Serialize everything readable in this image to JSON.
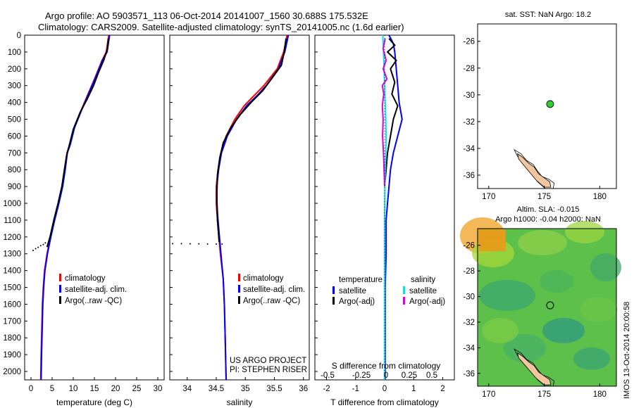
{
  "header": {
    "title_line1": "Argo profile: AO 5903571_113 06-Oct-2014 20141007_1560 30.688S 175.532E",
    "title_line2": "Climatology: CARS2009. Satellite-adjusted climatology: synTS_20141005.nc (1.6d earlier)"
  },
  "colors": {
    "climatology": "#ff0000",
    "satellite": "#0000ff",
    "argo": "#000000",
    "sat_salinity": "#00e6e6",
    "argo_salinity_adj": "#e000e0",
    "argo_marker": "#33cc33",
    "land": "#f3c6a0"
  },
  "chart_data": [
    {
      "type": "line",
      "panel": "temperature",
      "xlabel": "temperature (deg C)",
      "ylabel": "",
      "xlim": [
        -1.5,
        31.5
      ],
      "ylim": [
        2050,
        0
      ],
      "xticks": [
        "0",
        "5",
        "10",
        "15",
        "20",
        "25",
        "30"
      ],
      "xtick_values": [
        0,
        5,
        10,
        15,
        20,
        25,
        30
      ],
      "yticks": [
        "0",
        "100",
        "200",
        "300",
        "400",
        "500",
        "600",
        "700",
        "800",
        "900",
        "1000",
        "1100",
        "1200",
        "1300",
        "1400",
        "1500",
        "1600",
        "1700",
        "1800",
        "1900",
        "2000"
      ],
      "ytick_values": [
        0,
        100,
        200,
        300,
        400,
        500,
        600,
        700,
        800,
        900,
        1000,
        1100,
        1200,
        1300,
        1400,
        1500,
        1600,
        1700,
        1800,
        1900,
        2000
      ],
      "legend": [
        "climatology",
        "satellite-adj. clim.",
        "Argo(..raw -QC)"
      ],
      "legend_position": "bottom-right",
      "series": [
        {
          "name": "climatology",
          "color": "#ff0000",
          "x": [
            18.4,
            17.8,
            16.8,
            15.2,
            13.5,
            11.8,
            10.2,
            9.2,
            8.5,
            8.0,
            7.4,
            6.5,
            5.5,
            4.6,
            3.8,
            3.2,
            2.9,
            2.7,
            2.6,
            2.5,
            2.4,
            2.3
          ],
          "y": [
            0,
            100,
            150,
            250,
            350,
            450,
            550,
            650,
            700,
            800,
            900,
            1000,
            1100,
            1200,
            1300,
            1400,
            1500,
            1600,
            1700,
            1800,
            1900,
            2050
          ]
        },
        {
          "name": "satellite-adj. clim.",
          "color": "#0000ff",
          "x": [
            18.6,
            18.0,
            16.9,
            15.3,
            13.6,
            11.9,
            10.3,
            9.3,
            8.6,
            8.1,
            7.5,
            6.6,
            5.6,
            4.7,
            3.9,
            3.3,
            3.0,
            2.8,
            2.7,
            2.6,
            2.5,
            2.4
          ],
          "y": [
            0,
            100,
            150,
            250,
            350,
            450,
            550,
            650,
            700,
            800,
            900,
            1000,
            1100,
            1200,
            1300,
            1400,
            1500,
            1600,
            1700,
            1800,
            1900,
            2050
          ]
        },
        {
          "name": "Argo(..raw -QC)",
          "color": "#000000",
          "x": [
            18.3,
            18.1,
            17.2,
            16.0,
            14.8,
            13.3,
            11.6,
            10.0,
            9.1,
            8.4,
            7.9,
            7.3,
            6.4,
            5.4,
            4.5,
            3.8
          ],
          "y": [
            20,
            80,
            150,
            220,
            300,
            380,
            460,
            560,
            650,
            720,
            800,
            900,
            1000,
            1100,
            1200,
            1260
          ]
        },
        {
          "name": "",
          "color": "#000000",
          "style": "dots",
          "x": [
            0.5,
            1.1,
            1.7,
            2.3,
            2.9,
            3.4
          ],
          "y": [
            1280,
            1270,
            1262,
            1252,
            1245,
            1235
          ]
        }
      ]
    },
    {
      "type": "line",
      "panel": "salinity",
      "xlabel": "salinity",
      "ylabel": "",
      "xlim": [
        33.7,
        36.1
      ],
      "ylim": [
        2050,
        0
      ],
      "xticks": [
        "34",
        "34.5",
        "35",
        "35.5",
        "36"
      ],
      "xtick_values": [
        34,
        34.5,
        35,
        35.5,
        36
      ],
      "legend": [
        "climatology",
        "satellite-adj. clim.",
        "Argo(..raw -QC)"
      ],
      "legend_position": "bottom-right",
      "annotations": [
        "US ARGO PROJECT",
        "PI: STEPHEN RISER"
      ],
      "series": [
        {
          "name": "climatology",
          "color": "#ff0000",
          "x": [
            35.72,
            35.66,
            35.55,
            35.32,
            35.15,
            34.98,
            34.82,
            34.67,
            34.58,
            34.53,
            34.5,
            34.5,
            34.52,
            34.57,
            34.62,
            34.64,
            34.65,
            34.66,
            34.67
          ],
          "y": [
            0,
            100,
            200,
            300,
            360,
            420,
            500,
            600,
            700,
            800,
            900,
            1000,
            1100,
            1300,
            1450,
            1600,
            1750,
            1900,
            2050
          ]
        },
        {
          "name": "satellite-adj. clim.",
          "color": "#0000ff",
          "x": [
            35.74,
            35.68,
            35.57,
            35.36,
            35.2,
            35.02,
            34.85,
            34.69,
            34.59,
            34.54,
            34.51,
            34.51,
            34.53,
            34.58,
            34.62,
            34.64,
            34.65,
            34.66,
            34.67
          ],
          "y": [
            0,
            100,
            200,
            300,
            360,
            420,
            500,
            600,
            700,
            800,
            900,
            1000,
            1100,
            1300,
            1450,
            1600,
            1750,
            1900,
            2050
          ]
        },
        {
          "name": "Argo(..raw -QC)",
          "color": "#000000",
          "x": [
            35.7,
            35.67,
            35.62,
            35.45,
            35.3,
            35.1,
            34.92,
            34.75,
            34.62,
            34.56,
            34.52,
            34.51,
            34.52,
            34.55
          ],
          "y": [
            20,
            100,
            180,
            260,
            330,
            400,
            470,
            550,
            640,
            730,
            830,
            950,
            1100,
            1230
          ]
        },
        {
          "name": "",
          "color": "#000000",
          "style": "dots",
          "x": [
            33.75,
            33.9,
            34.05,
            34.2,
            34.35,
            34.5,
            34.6
          ],
          "y": [
            1240,
            1240,
            1241,
            1241,
            1242,
            1242,
            1242
          ]
        }
      ]
    },
    {
      "type": "line",
      "panel": "difference",
      "xlabel": "T difference from climatology",
      "xlabel2": "S difference from climatology",
      "ylabel": "",
      "xlim": [
        -2.4,
        2.4
      ],
      "ylim": [
        2050,
        0
      ],
      "xticks": [
        "-2",
        "-1",
        "0",
        "1",
        "2"
      ],
      "xtick_values": [
        -2,
        -1,
        0,
        1,
        2
      ],
      "xticks2": [
        "-0.5",
        "-0.25",
        "0",
        "0.25",
        "0.5"
      ],
      "xtick2_values": [
        -0.5,
        -0.25,
        0,
        0.25,
        0.5
      ],
      "legend_group1_title": "temperature",
      "legend_group2_title": "salinity",
      "legend": [
        "satellite",
        "Argo(-adj)",
        "satellite",
        "Argo(-adj)"
      ],
      "legend_position": "middle",
      "series": [
        {
          "name": "satellite",
          "group": "temperature",
          "color": "#0000ff",
          "x": [
            0.15,
            0.3,
            0.35,
            0.4,
            0.45,
            0.5,
            0.55,
            0.6,
            0.45,
            0.3,
            0.2,
            0.15,
            0.1,
            0.05,
            0.05,
            0.02,
            0.02,
            0.02,
            0.02
          ],
          "y": [
            0,
            50,
            100,
            200,
            300,
            400,
            450,
            500,
            600,
            700,
            800,
            900,
            1000,
            1100,
            1300,
            1500,
            1700,
            1900,
            2050
          ]
        },
        {
          "name": "Argo(-adj)",
          "group": "temperature",
          "color": "#000000",
          "x": [
            0.15,
            0.35,
            0.1,
            0.4,
            0.2,
            0.35,
            0.25,
            0.45,
            0.3,
            0.2,
            0.1,
            0.05,
            0.0
          ],
          "y": [
            20,
            60,
            100,
            150,
            200,
            280,
            350,
            420,
            500,
            600,
            700,
            800,
            900
          ]
        },
        {
          "name": "satellite",
          "group": "salinity",
          "color": "#00e6e6",
          "x": [
            -0.06,
            -0.04,
            -0.02,
            0.0,
            0.02,
            0.04,
            0.05,
            0.04,
            0.02,
            0.01,
            0.0,
            0.0,
            0.0,
            0.0
          ],
          "y": [
            0,
            100,
            200,
            300,
            400,
            500,
            600,
            700,
            800,
            900,
            1100,
            1400,
            1700,
            2050
          ]
        },
        {
          "name": "Argo(-adj)",
          "group": "salinity",
          "color": "#e000e0",
          "x": [
            0.02,
            -0.05,
            0.05,
            -0.05,
            0.08,
            -0.08,
            -0.03,
            -0.08,
            -0.05,
            -0.07,
            -0.04,
            -0.02,
            0.0
          ],
          "y": [
            20,
            80,
            150,
            200,
            260,
            300,
            350,
            420,
            500,
            600,
            700,
            800,
            900
          ]
        }
      ]
    },
    {
      "type": "scatter",
      "panel": "sst-map",
      "title": "sat. SST: NaN Argo: 18.2",
      "xlim": [
        169,
        181.5
      ],
      "ylim": [
        -37,
        -24.7
      ],
      "xticks": [
        "170",
        "175",
        "180"
      ],
      "xtick_values": [
        170,
        175,
        180
      ],
      "yticks": [
        "-26",
        "-28",
        "-30",
        "-32",
        "-34",
        "-36"
      ],
      "ytick_values": [
        -26,
        -28,
        -30,
        -32,
        -34,
        -36
      ],
      "series": [
        {
          "name": "",
          "color": "#33cc33",
          "x": [
            175.532
          ],
          "y": [
            -30.688
          ]
        }
      ]
    },
    {
      "type": "heatmap",
      "panel": "sla-map",
      "title": "Altim. SLA: -0.015",
      "subtitle": "Argo h1000: -0.04 h2000: NaN",
      "xlim": [
        169,
        181.5
      ],
      "ylim": [
        -37,
        -24.7
      ],
      "xticks": [
        "170",
        "175",
        "180"
      ],
      "xtick_values": [
        170,
        175,
        180
      ],
      "yticks": [
        "-26",
        "-28",
        "-30",
        "-32",
        "-34",
        "-36"
      ],
      "ytick_values": [
        -26,
        -28,
        -30,
        -32,
        -34,
        -36
      ],
      "series": [
        {
          "name": "",
          "color": "#000000",
          "x": [
            175.532
          ],
          "y": [
            -30.688
          ]
        }
      ]
    }
  ],
  "footer": {
    "side_label": "IMOS 13-Oct-2014 20:00:58"
  }
}
